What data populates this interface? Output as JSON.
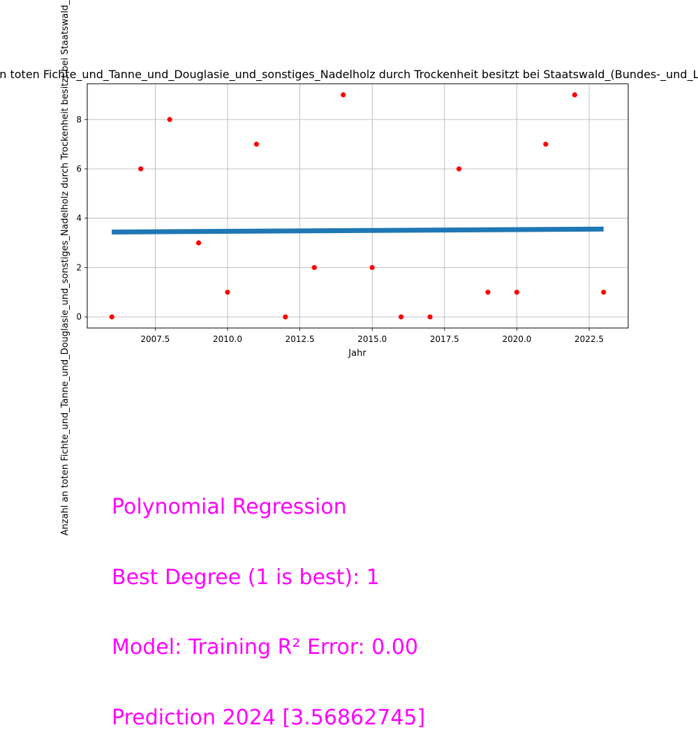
{
  "chart_data": {
    "type": "scatter",
    "title": "Anzahl an toten Fichte_und_Tanne_und_Douglasie_und_sonstiges_Nadelholz durch Trockenheit besitzt bei Staatswald_(Bundes-_und_Landeswald)",
    "xlabel": "Jahr",
    "ylabel": "Anzahl an toten Fichte_und_Tanne_und_Douglasie_und_sonstiges_Nadelholz durch Trockenheit besitzt bei Staatswald_(Bundes-_und_Landeswald)",
    "xlim": [
      2005.15,
      2023.85
    ],
    "ylim": [
      -0.45,
      9.45
    ],
    "xticks": [
      2007.5,
      2010.0,
      2012.5,
      2015.0,
      2017.5,
      2020.0,
      2022.5
    ],
    "xtick_labels": [
      "2007.5",
      "2010.0",
      "2012.5",
      "2015.0",
      "2017.5",
      "2020.0",
      "2022.5"
    ],
    "yticks": [
      0,
      2,
      4,
      6,
      8
    ],
    "ytick_labels": [
      "0",
      "2",
      "4",
      "6",
      "8"
    ],
    "grid": true,
    "series": [
      {
        "kind": "scatter",
        "color": "#ff0000",
        "x": [
          2006,
          2007,
          2008,
          2009,
          2010,
          2011,
          2012,
          2013,
          2014,
          2015,
          2016,
          2017,
          2018,
          2019,
          2020,
          2021,
          2022,
          2023
        ],
        "y": [
          0,
          6,
          8,
          3,
          1,
          7,
          0,
          2,
          9,
          2,
          0,
          0,
          6,
          1,
          1,
          7,
          9,
          1
        ]
      },
      {
        "kind": "line",
        "color": "#1f77b4",
        "x": [
          2006,
          2023
        ],
        "y": [
          3.4392,
          3.5608
        ]
      }
    ]
  },
  "annotation": {
    "color": "#ff00ff",
    "lines": [
      "Polynomial Regression",
      "Best Degree (1 is best): 1",
      "Model: Training R² Error: 0.00",
      "Prediction 2024 [3.56862745]"
    ]
  }
}
